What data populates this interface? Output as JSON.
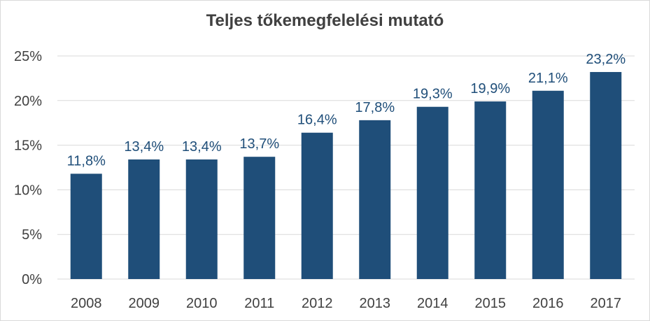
{
  "chart_data": {
    "type": "bar",
    "title": "Teljes tőkemegfelelési mutató",
    "categories": [
      "2008",
      "2009",
      "2010",
      "2011",
      "2012",
      "2013",
      "2014",
      "2015",
      "2016",
      "2017"
    ],
    "values": [
      11.8,
      13.4,
      13.4,
      13.7,
      16.4,
      17.8,
      19.3,
      19.9,
      21.1,
      23.2
    ],
    "data_labels": [
      "11,8%",
      "13,4%",
      "13,4%",
      "13,7%",
      "16,4%",
      "17,8%",
      "19,3%",
      "19,9%",
      "21,1%",
      "23,2%"
    ],
    "y_ticks": [
      0,
      5,
      10,
      15,
      20,
      25
    ],
    "y_tick_labels": [
      "0%",
      "5%",
      "10%",
      "15%",
      "20%",
      "25%"
    ],
    "ylim": [
      0,
      25
    ],
    "xlabel": "",
    "ylabel": "",
    "grid": true,
    "legend": "none",
    "bar_color": "#1f4e79",
    "label_color": "#1f4e79",
    "grid_color": "#d9d9d9"
  }
}
